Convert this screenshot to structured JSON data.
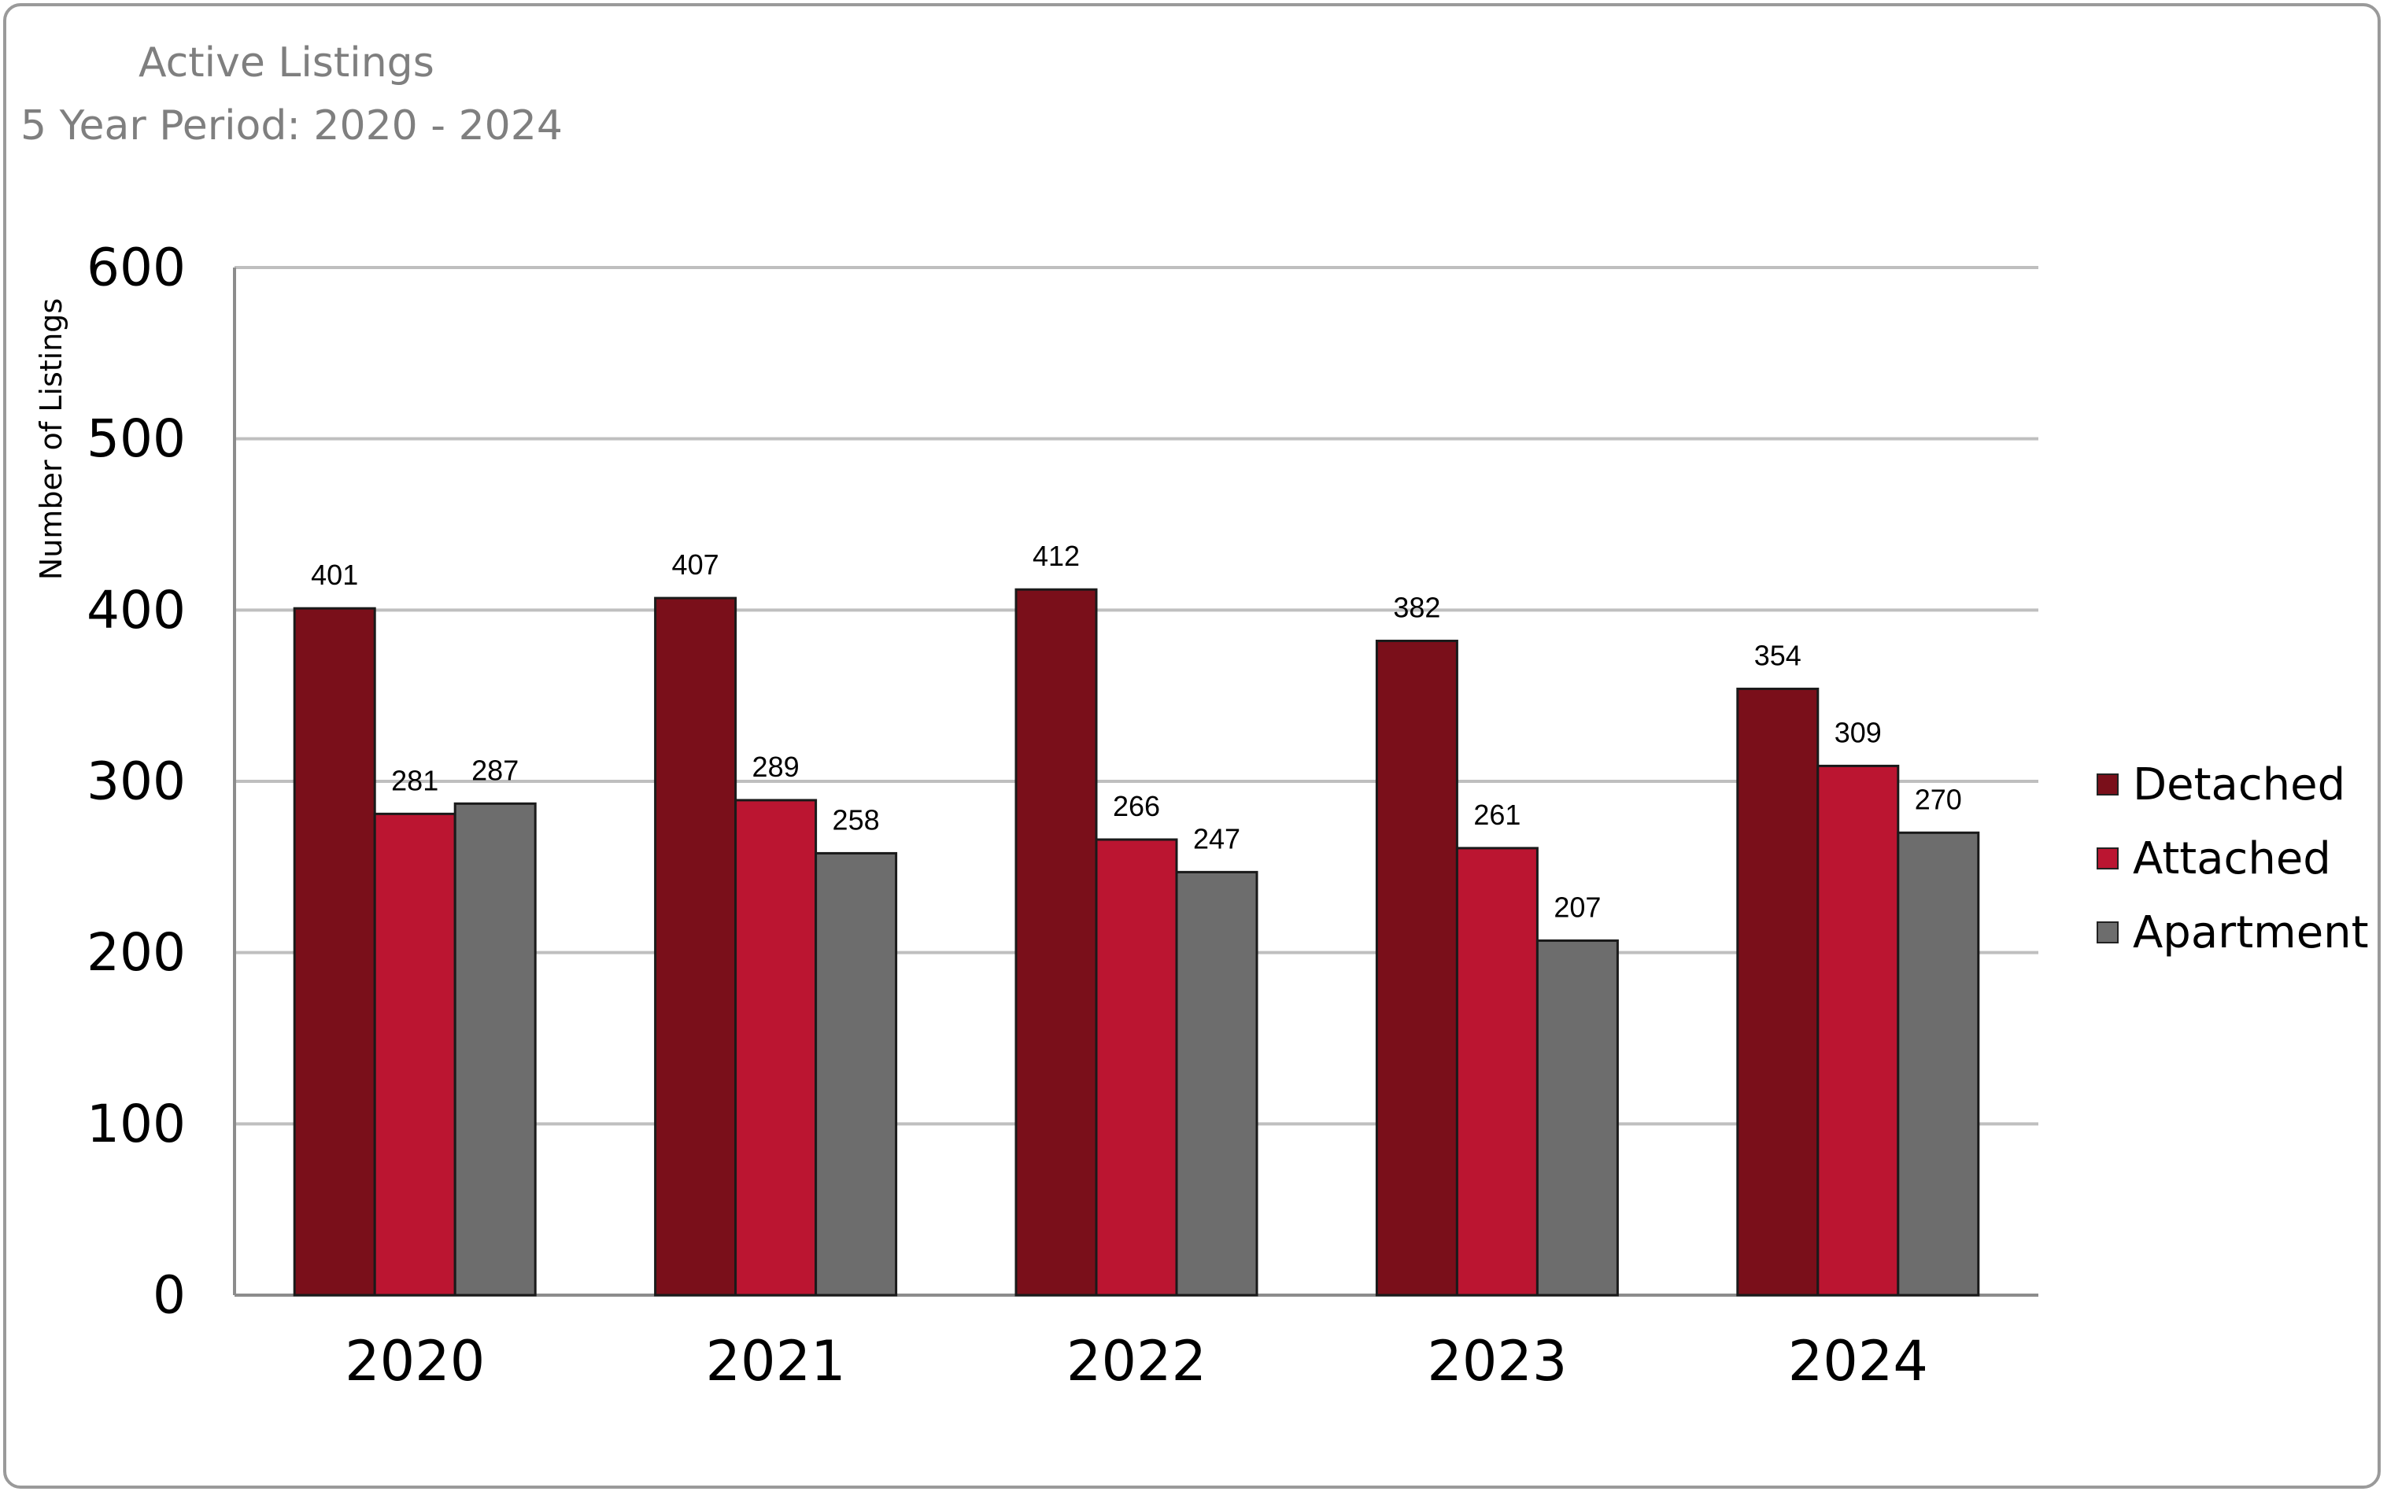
{
  "title": "Active Listings",
  "subtitle": "5 Year Period: 2020 - 2024",
  "colors": {
    "detached": "#7a0f1a",
    "attached": "#bb1531",
    "apartment": "#6d6d6d",
    "grid": "#bfbfbf",
    "axis": "#8c8c8c",
    "frame": "#9a9a9a",
    "title": "#7f7f7f"
  },
  "chart_data": {
    "type": "bar",
    "title": "Active Listings",
    "subtitle": "5 Year Period: 2020 - 2024",
    "categories": [
      "2020",
      "2021",
      "2022",
      "2023",
      "2024"
    ],
    "series": [
      {
        "name": "Detached",
        "values": [
          401,
          407,
          412,
          382,
          354
        ]
      },
      {
        "name": "Attached",
        "values": [
          281,
          289,
          266,
          261,
          309
        ]
      },
      {
        "name": "Apartment",
        "values": [
          287,
          258,
          247,
          207,
          270
        ]
      }
    ],
    "xlabel": "",
    "ylabel": "Number of Listings",
    "ylim": [
      0,
      600
    ],
    "yticks": [
      0,
      100,
      200,
      300,
      400,
      500,
      600
    ],
    "grid": true,
    "legend": "right",
    "data_labels": true
  }
}
